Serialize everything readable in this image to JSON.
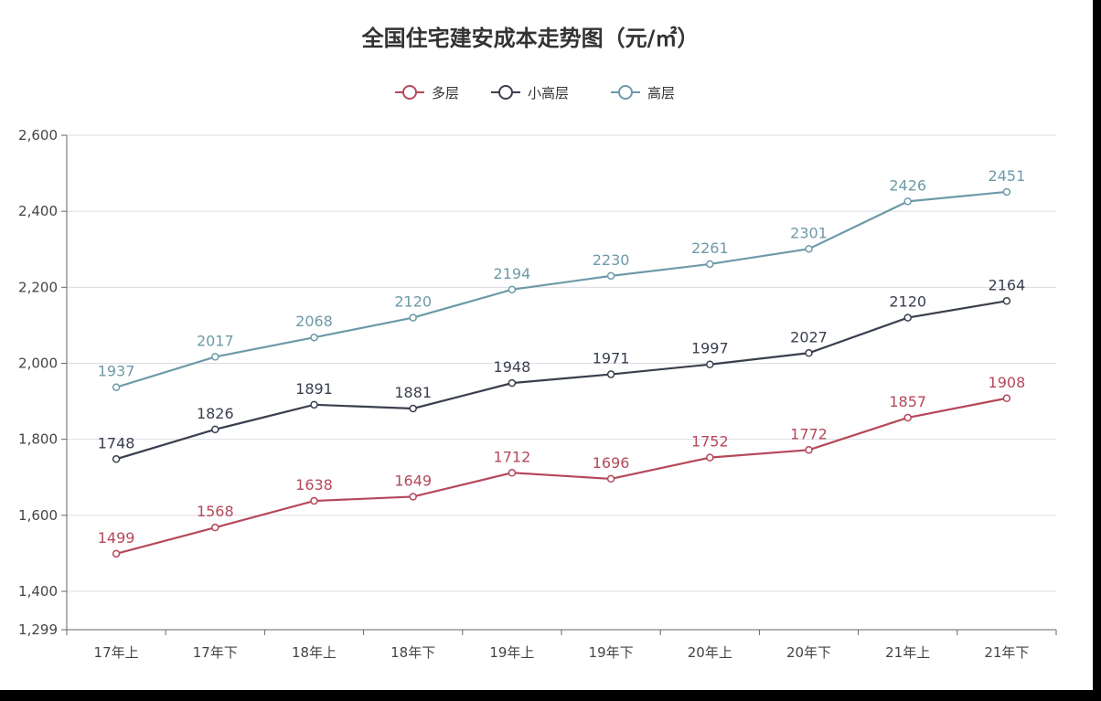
{
  "chart_data": {
    "type": "line",
    "title": "全国住宅建安成本走势图（元/㎡）",
    "xlabel": "",
    "ylabel": "",
    "categories": [
      "17年上",
      "17年下",
      "18年上",
      "18年下",
      "19年上",
      "19年下",
      "20年上",
      "20年下",
      "21年上",
      "21年下"
    ],
    "ylim": [
      1299,
      2600
    ],
    "yticks": [
      1299,
      1400,
      1600,
      1800,
      2000,
      2200,
      2400,
      2600
    ],
    "ytick_labels": [
      "1,299",
      "1,400",
      "1,600",
      "1,800",
      "2,000",
      "2,200",
      "2,400",
      "2,600"
    ],
    "grid": true,
    "legend_position": "top-center",
    "series": [
      {
        "name": "多层",
        "color": "#b5485a",
        "values": [
          1499,
          1568,
          1638,
          1649,
          1712,
          1696,
          1752,
          1772,
          1857,
          1908
        ],
        "labels": [
          "1499",
          "1568",
          "1638",
          "1649",
          "1712",
          "1696",
          "1752",
          "1772",
          "1857",
          "1908"
        ]
      },
      {
        "name": "小高层",
        "color": "#3a3f4f",
        "values": [
          1748,
          1826,
          1891,
          1881,
          1948,
          1971,
          1997,
          2027,
          2120,
          2164
        ],
        "labels": [
          "1748",
          "1826",
          "1891",
          "1881",
          "1948",
          "1971",
          "1997",
          "2027",
          "2120",
          "2164"
        ]
      },
      {
        "name": "高层",
        "color": "#6d9aa8",
        "values": [
          1937,
          2017,
          2068,
          2120,
          2194,
          2230,
          2261,
          2301,
          2426,
          2451
        ],
        "labels": [
          "1937",
          "2017",
          "2068",
          "2120",
          "2194",
          "2230",
          "2261",
          "2301",
          "2426",
          "2451"
        ]
      }
    ]
  }
}
